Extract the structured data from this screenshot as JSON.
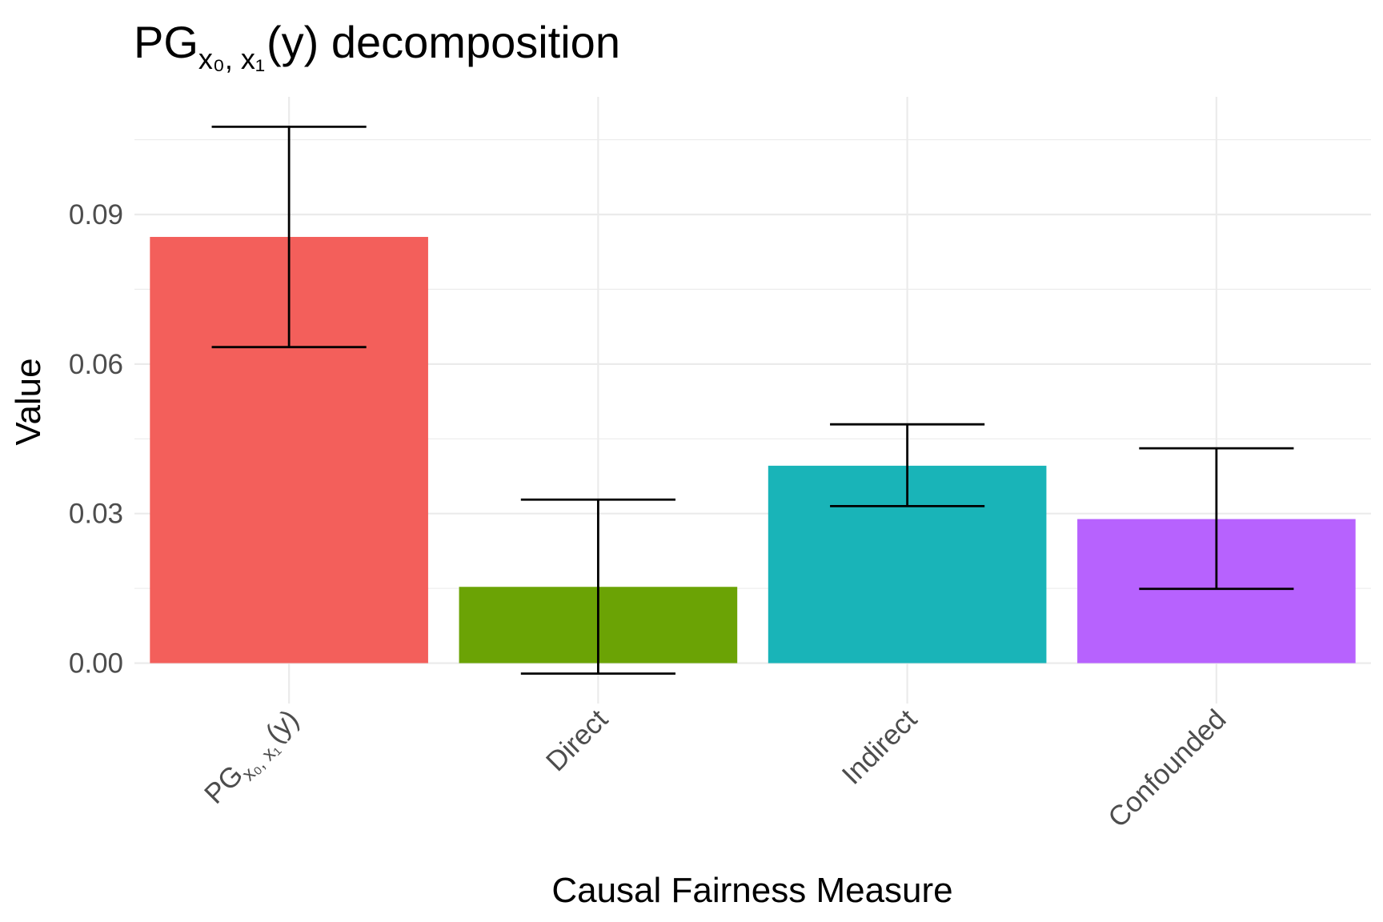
{
  "chart_data": {
    "type": "bar",
    "title": {
      "main": "PG",
      "sub": "x₀, x₁",
      "rest": "(y) decomposition",
      "full": "PG_{x0, x1}(y) decomposition"
    },
    "xlabel": "Causal Fairness Measure",
    "ylabel": "Value",
    "categories": [
      {
        "main": "PG",
        "sub": "x₀, x₁",
        "rest": "(y)",
        "full": "PG_{x0, x1}(y)"
      },
      {
        "main": "Direct",
        "sub": "",
        "rest": "",
        "full": "Direct"
      },
      {
        "main": "Indirect",
        "sub": "",
        "rest": "",
        "full": "Indirect"
      },
      {
        "main": "Confounded",
        "sub": "",
        "rest": "",
        "full": "Confounded"
      }
    ],
    "values": [
      0.0855,
      0.0153,
      0.0396,
      0.0289
    ],
    "error_lower": [
      0.0634,
      -0.0021,
      0.0315,
      0.0149
    ],
    "error_upper": [
      0.1076,
      0.0328,
      0.0479,
      0.0431
    ],
    "colors": [
      "#F35F5B",
      "#6BA305",
      "#19B4B8",
      "#B762FE"
    ],
    "y_ticks": [
      0.0,
      0.03,
      0.06,
      0.09
    ],
    "y_tick_labels": [
      "0.00",
      "0.03",
      "0.06",
      "0.09"
    ],
    "y_minor_ticks": [
      0.015,
      0.045,
      0.075,
      0.105
    ],
    "ylim": [
      -0.0081,
      0.1136
    ],
    "grid": true,
    "legend": "none",
    "x_tick_rotation_deg": 45
  }
}
